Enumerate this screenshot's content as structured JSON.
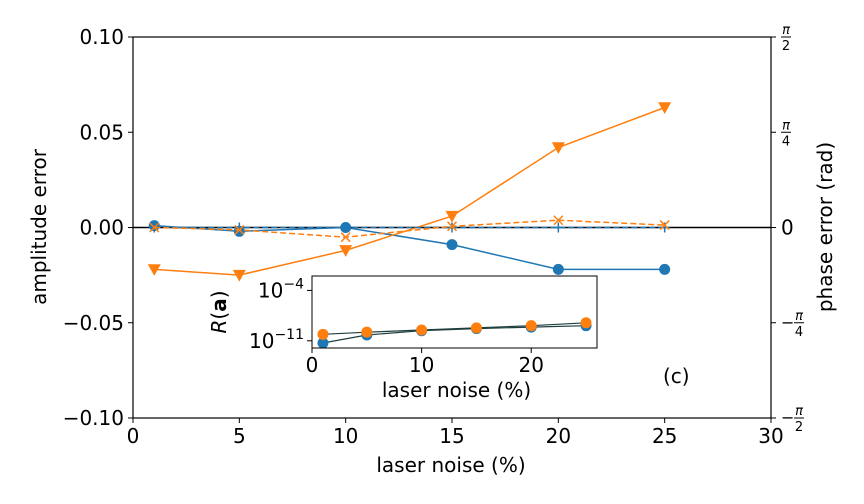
{
  "chart_data": {
    "type": "line",
    "xlabel": "laser noise (%)",
    "ylabel_left": "amplitude error",
    "ylabel_right": "phase error (rad)",
    "xlim": [
      0,
      30
    ],
    "ylim_left": [
      -0.1,
      0.1
    ],
    "ylim_right": [
      -1.5708,
      1.5708
    ],
    "x_ticks": [
      "0",
      "5",
      "10",
      "15",
      "20",
      "25",
      "30"
    ],
    "y_ticks_left": [
      "0.10",
      "0.05",
      "0.00",
      "−0.05",
      "−0.10"
    ],
    "y_ticks_right": [
      {
        "value": 1.5708,
        "num": "π",
        "den": "2",
        "sign": ""
      },
      {
        "value": 0.7854,
        "num": "π",
        "den": "4",
        "sign": ""
      },
      {
        "value": 0,
        "num": "0",
        "den": "",
        "sign": ""
      },
      {
        "value": -0.7854,
        "num": "π",
        "den": "4",
        "sign": "−"
      },
      {
        "value": -1.5708,
        "num": "π",
        "den": "2",
        "sign": "−"
      }
    ],
    "panel_label": "(c)",
    "series": [
      {
        "color": "#1f77b4",
        "line": "solid",
        "marker": "circle",
        "axis": "left",
        "x": [
          1,
          5,
          10,
          15,
          20,
          25
        ],
        "y": [
          0.001,
          -0.002,
          0.0,
          -0.009,
          -0.022,
          -0.022
        ]
      },
      {
        "color": "#ff7f0e",
        "line": "solid",
        "marker": "triangle-down",
        "axis": "left",
        "x": [
          1,
          5,
          10,
          15,
          20,
          25
        ],
        "y": [
          -0.022,
          -0.025,
          -0.012,
          0.006,
          0.042,
          0.063
        ]
      },
      {
        "color": "#1f77b4",
        "line": "dashed",
        "marker": "plus",
        "axis": "right",
        "x": [
          1,
          5,
          10,
          15,
          20,
          25
        ],
        "y": [
          0.0,
          0.0,
          0.0,
          0.0,
          0.0,
          0.0
        ]
      },
      {
        "color": "#ff7f0e",
        "line": "dashed",
        "marker": "x",
        "axis": "right",
        "x": [
          1,
          5,
          10,
          15,
          20,
          25
        ],
        "y": [
          0.0,
          -0.02,
          -0.08,
          0.01,
          0.06,
          0.02
        ]
      }
    ],
    "inset": {
      "type": "line",
      "ylabel_main": "R(",
      "ylabel_bold": "a",
      "ylabel_end": ")",
      "xlabel": "laser noise (%)",
      "xlim": [
        0,
        26
      ],
      "ylim_log10": [
        -12,
        -2
      ],
      "yscale": "log",
      "x_ticks": [
        "0",
        "10",
        "20"
      ],
      "y_ticks": [
        {
          "base": "10",
          "exp": "−4",
          "value": -4
        },
        {
          "base": "10",
          "exp": "−11",
          "value": -11
        }
      ],
      "series": [
        {
          "color": "#1f77b4",
          "marker": "circle",
          "x": [
            1,
            5,
            10,
            15,
            20,
            25
          ],
          "log10y": [
            -11.3,
            -10.2,
            -9.6,
            -9.3,
            -9.1,
            -8.9
          ]
        },
        {
          "color": "#ff7f0e",
          "marker": "circle",
          "x": [
            1,
            5,
            10,
            15,
            20,
            25
          ],
          "log10y": [
            -10.1,
            -9.8,
            -9.5,
            -9.2,
            -8.9,
            -8.5
          ]
        }
      ]
    }
  }
}
